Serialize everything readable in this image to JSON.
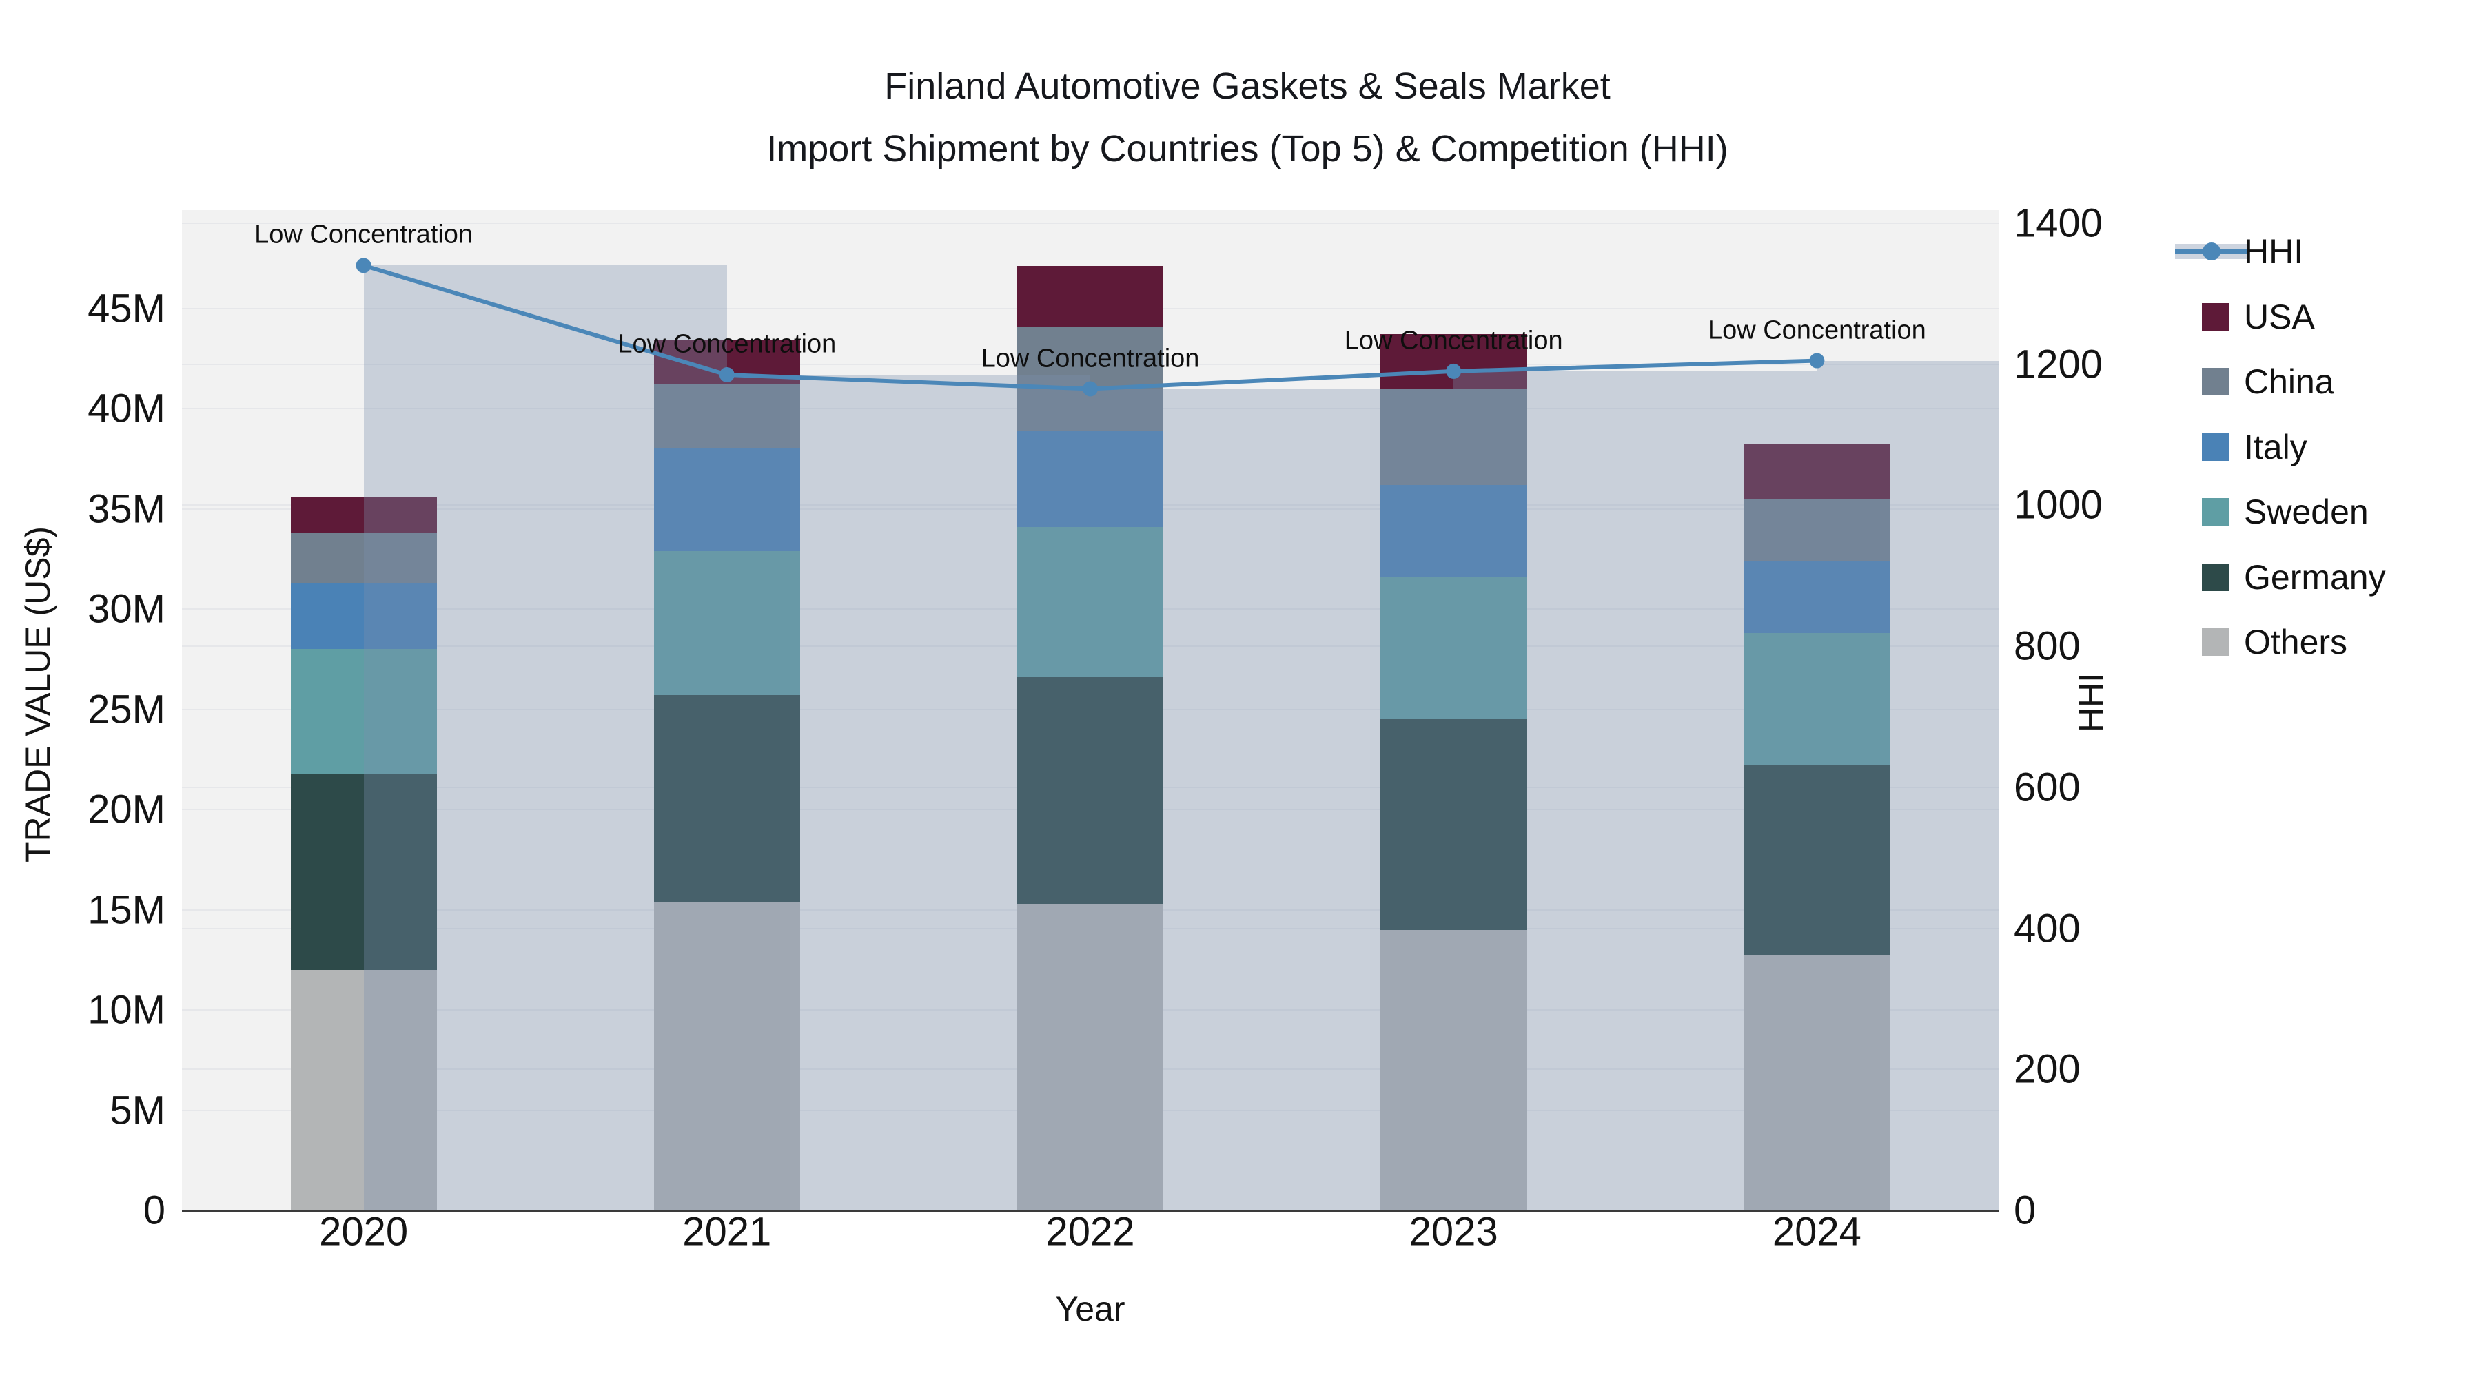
{
  "title": {
    "line1": "Finland Automotive Gaskets & Seals Market",
    "line2": "Import Shipment by Countries (Top 5) & Competition (HHI)"
  },
  "axes": {
    "left": {
      "title": "TRADE VALUE (US$)",
      "tick_labels": [
        "0",
        "5M",
        "10M",
        "15M",
        "20M",
        "25M",
        "30M",
        "35M",
        "40M",
        "45M"
      ],
      "tick_values": [
        0,
        5,
        10,
        15,
        20,
        25,
        30,
        35,
        40,
        45
      ],
      "unit": "millions US$"
    },
    "right": {
      "title": "HHI",
      "tick_labels": [
        "0",
        "200",
        "400",
        "600",
        "800",
        "1000",
        "1200",
        "1400"
      ],
      "tick_values": [
        0,
        200,
        400,
        600,
        800,
        1000,
        1200,
        1400
      ]
    },
    "x": {
      "title": "Year",
      "categories": [
        "2020",
        "2021",
        "2022",
        "2023",
        "2024"
      ]
    }
  },
  "legend": {
    "entries": [
      {
        "label": "HHI",
        "type": "line",
        "color": "#4b87b8"
      },
      {
        "label": "USA",
        "type": "swatch",
        "color": "#5e1a38"
      },
      {
        "label": "China",
        "type": "swatch",
        "color": "#71808f"
      },
      {
        "label": "Italy",
        "type": "swatch",
        "color": "#4a82b6"
      },
      {
        "label": "Sweden",
        "type": "swatch",
        "color": "#5f9ea4"
      },
      {
        "label": "Germany",
        "type": "swatch",
        "color": "#2d4a49"
      },
      {
        "label": "Others",
        "type": "swatch",
        "color": "#b3b5b6"
      }
    ]
  },
  "annotations": {
    "label": "Low Concentration"
  },
  "chart_data": {
    "type": "bar",
    "subtype": "stacked-bars-with-secondary-axis-line",
    "title": "Finland Automotive Gaskets & Seals Market — Import Shipment by Countries (Top 5) & Competition (HHI)",
    "categories": [
      "2020",
      "2021",
      "2022",
      "2023",
      "2024"
    ],
    "xlabel": "Year",
    "ylabel_left": "TRADE VALUE (US$)",
    "ylabel_right": "HHI",
    "ylim_left": [
      0,
      49.9
    ],
    "ylim_right": [
      0,
      1419
    ],
    "grid": true,
    "legend_position": "right",
    "stack_order_bottom_to_top": [
      "Others",
      "Germany",
      "Sweden",
      "Italy",
      "China",
      "USA"
    ],
    "series": [
      {
        "name": "Others",
        "type": "bar",
        "yaxis": "left",
        "unit": "M US$",
        "color": "#b3b5b6",
        "values": [
          12.0,
          15.4,
          15.3,
          14.0,
          12.7
        ]
      },
      {
        "name": "Germany",
        "type": "bar",
        "yaxis": "left",
        "unit": "M US$",
        "color": "#2d4a49",
        "values": [
          9.8,
          10.3,
          11.3,
          10.5,
          9.5
        ]
      },
      {
        "name": "Sweden",
        "type": "bar",
        "yaxis": "left",
        "unit": "M US$",
        "color": "#5f9ea4",
        "values": [
          6.2,
          7.2,
          7.5,
          7.1,
          6.6
        ]
      },
      {
        "name": "Italy",
        "type": "bar",
        "yaxis": "left",
        "unit": "M US$",
        "color": "#4a82b6",
        "values": [
          3.3,
          5.1,
          4.8,
          4.6,
          3.6
        ]
      },
      {
        "name": "China",
        "type": "bar",
        "yaxis": "left",
        "unit": "M US$",
        "color": "#71808f",
        "values": [
          2.5,
          3.2,
          5.2,
          4.8,
          3.1
        ]
      },
      {
        "name": "USA",
        "type": "bar",
        "yaxis": "left",
        "unit": "M US$",
        "color": "#5e1a38",
        "values": [
          1.8,
          2.2,
          3.0,
          2.7,
          2.7
        ]
      },
      {
        "name": "HHI",
        "type": "line",
        "yaxis": "right",
        "color": "#4b87b8",
        "values": [
          1340,
          1185,
          1165,
          1190,
          1205
        ],
        "band_color": "rgba(124,143,172,0.34)",
        "point_annotations": [
          "Low Concentration",
          "Low Concentration",
          "Low Concentration",
          "Low Concentration",
          "Low Concentration"
        ]
      }
    ],
    "stack_totals": [
      35.6,
      43.4,
      47.1,
      43.7,
      38.2
    ]
  },
  "colors": {
    "page_background": "#ffffff",
    "plot_background": "#f2f2f2",
    "gridline": "#e6e7ea",
    "axis_line": "#3a3a3a",
    "hhi_line": "#4b87b8",
    "hhi_band": "rgba(124,143,172,0.34)"
  }
}
